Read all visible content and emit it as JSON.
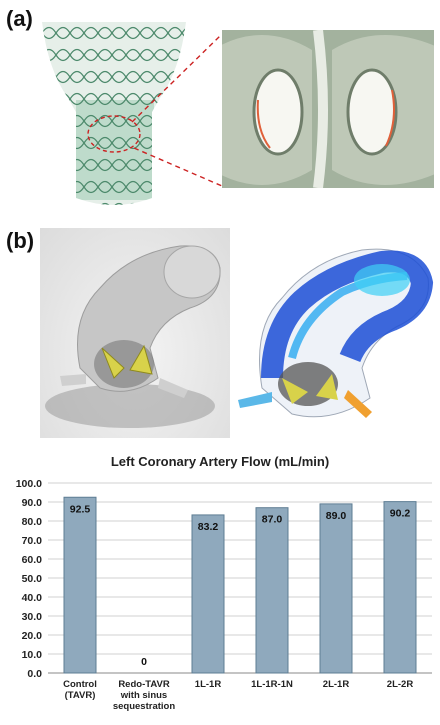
{
  "panels": {
    "a_label": "(a)",
    "b_label": "(b)"
  },
  "colors": {
    "bar_fill": "#8fa9bd",
    "bar_stroke": "#5e7d93",
    "grid": "#d0d0d0",
    "axis_text": "#222222",
    "stent_green": "#5f9e7e"
  },
  "chart_data": {
    "type": "bar",
    "title": "Left Coronary Artery Flow (mL/min)",
    "categories": [
      [
        "Control",
        "(TAVR)"
      ],
      [
        "Redo-TAVR",
        "with sinus",
        "sequestration"
      ],
      [
        "1L-1R"
      ],
      [
        "1L-1R-1N"
      ],
      [
        "2L-1R"
      ],
      [
        "2L-2R"
      ]
    ],
    "values": [
      92.5,
      0,
      83.2,
      87.0,
      89.0,
      90.2
    ],
    "value_labels": [
      "92.5",
      "0",
      "83.2",
      "87.0",
      "89.0",
      "90.2"
    ],
    "ylim": [
      0,
      100
    ],
    "yticks": [
      "0.0",
      "10.0",
      "20.0",
      "30.0",
      "40.0",
      "50.0",
      "60.0",
      "70.0",
      "80.0",
      "90.0",
      "100.0"
    ],
    "grid": true,
    "xlabel": "",
    "ylabel": ""
  }
}
